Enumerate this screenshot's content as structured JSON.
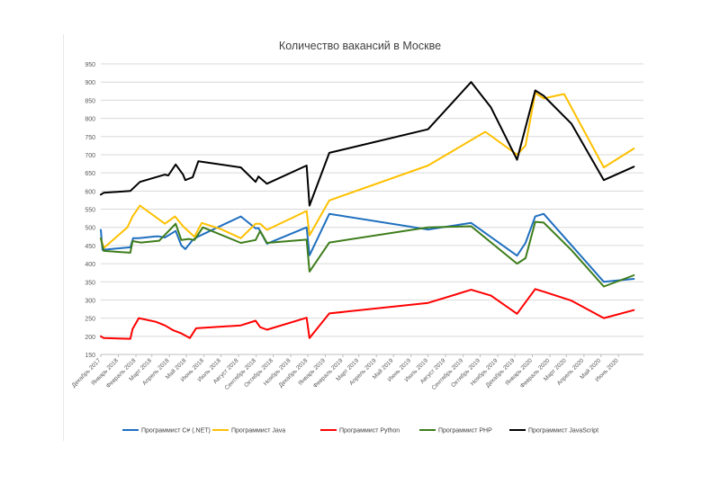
{
  "chart_data": {
    "type": "line",
    "title": "Количество вакансий в Москве",
    "xlabel": "",
    "ylabel": "",
    "ylim": [
      150,
      950
    ],
    "yticks": [
      150,
      200,
      250,
      300,
      350,
      400,
      450,
      500,
      550,
      600,
      650,
      700,
      750,
      800,
      850,
      900,
      950
    ],
    "grid": "horizontal",
    "legend_position": "bottom",
    "x_start": "2017-12-01",
    "x_end": "2020-07-15",
    "x_tick_labels": [
      {
        "label": "Декабрь 2017",
        "date": "2017-12-01"
      },
      {
        "label": "Январь 2018",
        "date": "2018-01-01"
      },
      {
        "label": "Февраль 2018",
        "date": "2018-02-01"
      },
      {
        "label": "Март 2018",
        "date": "2018-03-01"
      },
      {
        "label": "Апрель 2018",
        "date": "2018-04-01"
      },
      {
        "label": "Май 2018",
        "date": "2018-05-01"
      },
      {
        "label": "Июнь 2018",
        "date": "2018-06-01"
      },
      {
        "label": "Июль 2018",
        "date": "2018-07-01"
      },
      {
        "label": "Август 2018",
        "date": "2018-08-01"
      },
      {
        "label": "Сентябрь 2018",
        "date": "2018-09-01"
      },
      {
        "label": "Октябрь 2018",
        "date": "2018-10-01"
      },
      {
        "label": "Ноябрь 2018",
        "date": "2018-11-01"
      },
      {
        "label": "Декабрь 2018",
        "date": "2018-12-01"
      },
      {
        "label": "Январь 2019",
        "date": "2019-01-01"
      },
      {
        "label": "Февраль 2019",
        "date": "2019-02-01"
      },
      {
        "label": "Март 2019",
        "date": "2019-03-01"
      },
      {
        "label": "Апрель 2019",
        "date": "2019-04-01"
      },
      {
        "label": "Май 2019",
        "date": "2019-05-01"
      },
      {
        "label": "Июнь 2019",
        "date": "2019-06-01"
      },
      {
        "label": "Июль 2019",
        "date": "2019-07-01"
      },
      {
        "label": "Август 2019",
        "date": "2019-08-01"
      },
      {
        "label": "Сентябрь 2019",
        "date": "2019-09-01"
      },
      {
        "label": "Октябрь 2019",
        "date": "2019-10-01"
      },
      {
        "label": "Ноябрь 2019",
        "date": "2019-11-01"
      },
      {
        "label": "Декабрь 2019",
        "date": "2019-12-01"
      },
      {
        "label": "Январь 2020",
        "date": "2020-01-01"
      },
      {
        "label": "Февраль 2020",
        "date": "2020-02-01"
      },
      {
        "label": "Март 2020",
        "date": "2020-03-01"
      },
      {
        "label": "Апрель 2020",
        "date": "2020-04-01"
      },
      {
        "label": "Май 2020",
        "date": "2020-05-01"
      },
      {
        "label": "Июнь 2020",
        "date": "2020-06-01"
      }
    ],
    "series": [
      {
        "name": "Программист C# (.NET)",
        "color": "#1f6fbf",
        "points": [
          {
            "x": "2017-12-01",
            "y": 493
          },
          {
            "x": "2017-12-04",
            "y": 438
          },
          {
            "x": "2018-01-22",
            "y": 445
          },
          {
            "x": "2018-01-27",
            "y": 470
          },
          {
            "x": "2018-02-06",
            "y": 470
          },
          {
            "x": "2018-03-08",
            "y": 475
          },
          {
            "x": "2018-03-14",
            "y": 475
          },
          {
            "x": "2018-03-24",
            "y": 472
          },
          {
            "x": "2018-04-12",
            "y": 490
          },
          {
            "x": "2018-04-22",
            "y": 450
          },
          {
            "x": "2018-04-29",
            "y": 440
          },
          {
            "x": "2018-05-12",
            "y": 465
          },
          {
            "x": "2018-05-22",
            "y": 475
          },
          {
            "x": "2018-08-05",
            "y": 530
          },
          {
            "x": "2018-08-31",
            "y": 497
          },
          {
            "x": "2018-09-05",
            "y": 498
          },
          {
            "x": "2018-09-20",
            "y": 455
          },
          {
            "x": "2018-11-29",
            "y": 500
          },
          {
            "x": "2018-12-04",
            "y": 423
          },
          {
            "x": "2019-01-08",
            "y": 537
          },
          {
            "x": "2019-07-01",
            "y": 494
          },
          {
            "x": "2019-09-15",
            "y": 512
          },
          {
            "x": "2019-12-05",
            "y": 422
          },
          {
            "x": "2019-12-20",
            "y": 457
          },
          {
            "x": "2020-01-06",
            "y": 530
          },
          {
            "x": "2020-01-21",
            "y": 537
          },
          {
            "x": "2020-05-06",
            "y": 350
          },
          {
            "x": "2020-06-28",
            "y": 358
          }
        ]
      },
      {
        "name": "Программист Java",
        "color": "#ffc000",
        "points": [
          {
            "x": "2017-12-01",
            "y": 470
          },
          {
            "x": "2017-12-06",
            "y": 443
          },
          {
            "x": "2018-01-17",
            "y": 500
          },
          {
            "x": "2018-01-26",
            "y": 530
          },
          {
            "x": "2018-02-08",
            "y": 560
          },
          {
            "x": "2018-03-24",
            "y": 510
          },
          {
            "x": "2018-04-11",
            "y": 530
          },
          {
            "x": "2018-04-25",
            "y": 503
          },
          {
            "x": "2018-05-15",
            "y": 474
          },
          {
            "x": "2018-05-28",
            "y": 512
          },
          {
            "x": "2018-07-01",
            "y": 495
          },
          {
            "x": "2018-08-05",
            "y": 470
          },
          {
            "x": "2018-08-31",
            "y": 510
          },
          {
            "x": "2018-09-08",
            "y": 510
          },
          {
            "x": "2018-09-20",
            "y": 493
          },
          {
            "x": "2018-11-29",
            "y": 545
          },
          {
            "x": "2018-12-04",
            "y": 478
          },
          {
            "x": "2019-01-08",
            "y": 574
          },
          {
            "x": "2019-07-01",
            "y": 670
          },
          {
            "x": "2019-10-10",
            "y": 763
          },
          {
            "x": "2019-12-05",
            "y": 700
          },
          {
            "x": "2019-12-20",
            "y": 725
          },
          {
            "x": "2020-01-06",
            "y": 870
          },
          {
            "x": "2020-01-21",
            "y": 855
          },
          {
            "x": "2020-02-26",
            "y": 867
          },
          {
            "x": "2020-05-06",
            "y": 665
          },
          {
            "x": "2020-06-28",
            "y": 717
          }
        ]
      },
      {
        "name": "Программист Python",
        "color": "#ff0000",
        "points": [
          {
            "x": "2017-12-01",
            "y": 200
          },
          {
            "x": "2017-12-06",
            "y": 195
          },
          {
            "x": "2018-01-22",
            "y": 193
          },
          {
            "x": "2018-01-26",
            "y": 220
          },
          {
            "x": "2018-02-06",
            "y": 250
          },
          {
            "x": "2018-03-08",
            "y": 240
          },
          {
            "x": "2018-03-24",
            "y": 230
          },
          {
            "x": "2018-04-07",
            "y": 217
          },
          {
            "x": "2018-04-22",
            "y": 208
          },
          {
            "x": "2018-05-07",
            "y": 195
          },
          {
            "x": "2018-05-18",
            "y": 222
          },
          {
            "x": "2018-08-05",
            "y": 230
          },
          {
            "x": "2018-08-31",
            "y": 243
          },
          {
            "x": "2018-09-08",
            "y": 225
          },
          {
            "x": "2018-09-20",
            "y": 218
          },
          {
            "x": "2018-11-29",
            "y": 251
          },
          {
            "x": "2018-12-04",
            "y": 195
          },
          {
            "x": "2019-01-08",
            "y": 263
          },
          {
            "x": "2019-07-01",
            "y": 292
          },
          {
            "x": "2019-09-15",
            "y": 328
          },
          {
            "x": "2019-10-20",
            "y": 312
          },
          {
            "x": "2019-12-05",
            "y": 262
          },
          {
            "x": "2020-01-06",
            "y": 330
          },
          {
            "x": "2020-01-21",
            "y": 323
          },
          {
            "x": "2020-03-10",
            "y": 298
          },
          {
            "x": "2020-05-06",
            "y": 250
          },
          {
            "x": "2020-06-28",
            "y": 272
          }
        ]
      },
      {
        "name": "Программист PHP",
        "color": "#3e7d1b",
        "points": [
          {
            "x": "2017-12-01",
            "y": 470
          },
          {
            "x": "2017-12-06",
            "y": 435
          },
          {
            "x": "2018-01-22",
            "y": 430
          },
          {
            "x": "2018-01-26",
            "y": 462
          },
          {
            "x": "2018-02-10",
            "y": 458
          },
          {
            "x": "2018-03-14",
            "y": 463
          },
          {
            "x": "2018-04-12",
            "y": 510
          },
          {
            "x": "2018-04-22",
            "y": 465
          },
          {
            "x": "2018-05-05",
            "y": 468
          },
          {
            "x": "2018-05-15",
            "y": 465
          },
          {
            "x": "2018-05-30",
            "y": 500
          },
          {
            "x": "2018-08-05",
            "y": 457
          },
          {
            "x": "2018-08-31",
            "y": 465
          },
          {
            "x": "2018-09-08",
            "y": 490
          },
          {
            "x": "2018-09-20",
            "y": 457
          },
          {
            "x": "2018-11-29",
            "y": 466
          },
          {
            "x": "2018-12-04",
            "y": 378
          },
          {
            "x": "2019-01-08",
            "y": 458
          },
          {
            "x": "2019-07-01",
            "y": 500
          },
          {
            "x": "2019-09-15",
            "y": 503
          },
          {
            "x": "2019-12-05",
            "y": 400
          },
          {
            "x": "2019-12-20",
            "y": 415
          },
          {
            "x": "2020-01-06",
            "y": 515
          },
          {
            "x": "2020-01-21",
            "y": 513
          },
          {
            "x": "2020-03-10",
            "y": 437
          },
          {
            "x": "2020-05-06",
            "y": 337
          },
          {
            "x": "2020-06-28",
            "y": 368
          }
        ]
      },
      {
        "name": "Программист JavaScript",
        "color": "#000000",
        "points": [
          {
            "x": "2017-12-01",
            "y": 590
          },
          {
            "x": "2017-12-06",
            "y": 595
          },
          {
            "x": "2018-01-22",
            "y": 600
          },
          {
            "x": "2018-02-08",
            "y": 625
          },
          {
            "x": "2018-03-24",
            "y": 645
          },
          {
            "x": "2018-03-30",
            "y": 643
          },
          {
            "x": "2018-04-12",
            "y": 673
          },
          {
            "x": "2018-04-25",
            "y": 645
          },
          {
            "x": "2018-04-29",
            "y": 630
          },
          {
            "x": "2018-05-12",
            "y": 638
          },
          {
            "x": "2018-05-22",
            "y": 682
          },
          {
            "x": "2018-08-05",
            "y": 665
          },
          {
            "x": "2018-08-31",
            "y": 625
          },
          {
            "x": "2018-09-05",
            "y": 640
          },
          {
            "x": "2018-09-20",
            "y": 620
          },
          {
            "x": "2018-11-29",
            "y": 670
          },
          {
            "x": "2018-12-04",
            "y": 560
          },
          {
            "x": "2019-01-08",
            "y": 705
          },
          {
            "x": "2019-07-01",
            "y": 770
          },
          {
            "x": "2019-09-15",
            "y": 900
          },
          {
            "x": "2019-10-20",
            "y": 830
          },
          {
            "x": "2019-12-05",
            "y": 686
          },
          {
            "x": "2020-01-06",
            "y": 877
          },
          {
            "x": "2020-01-21",
            "y": 862
          },
          {
            "x": "2020-03-10",
            "y": 785
          },
          {
            "x": "2020-05-06",
            "y": 630
          },
          {
            "x": "2020-06-28",
            "y": 667
          }
        ]
      }
    ]
  }
}
